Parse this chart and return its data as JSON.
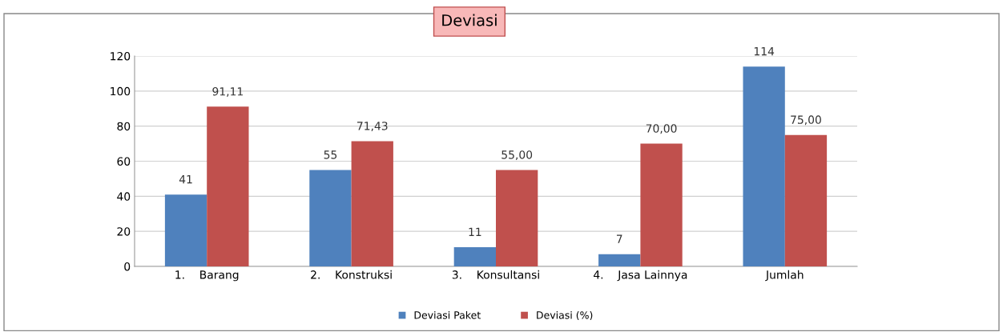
{
  "chart_data": {
    "type": "bar",
    "title": "Deviasi",
    "categories": [
      "1.    Barang",
      "2.    Konstruksi",
      "3.    Konsultansi",
      "4.    Jasa Lainnya",
      "Jumlah"
    ],
    "series": [
      {
        "name": "Deviasi Paket",
        "color": "#4f81bd",
        "values": [
          41,
          55,
          11,
          7,
          114
        ],
        "value_labels": [
          "41",
          "55",
          "11",
          "7",
          "114"
        ]
      },
      {
        "name": "Deviasi (%)",
        "color": "#c0504d",
        "values": [
          91.11,
          71.43,
          55,
          70,
          75
        ],
        "value_labels": [
          "91,11",
          "71,43",
          "55,00",
          "70,00",
          "75,00"
        ]
      }
    ],
    "ylim": [
      0,
      120
    ],
    "yticks": [
      0,
      20,
      40,
      60,
      80,
      100,
      120
    ],
    "grid": "y",
    "legend": "bottom"
  }
}
